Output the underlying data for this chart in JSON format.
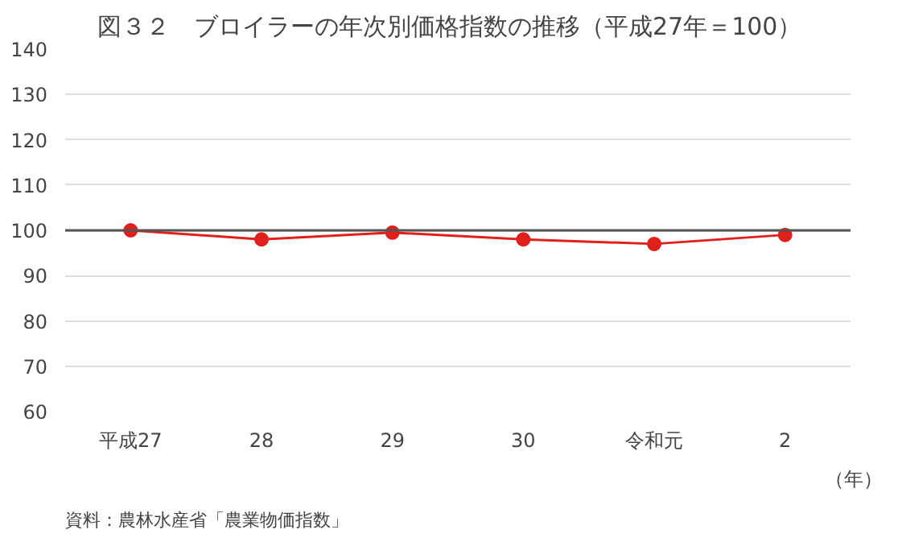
{
  "chart_data": {
    "type": "line",
    "title": "図３２　ブロイラーの年次別価格指数の推移（平成27年＝100）",
    "categories": [
      "平成27",
      "28",
      "29",
      "30",
      "令和元",
      "2"
    ],
    "series": [
      {
        "color": "#e0201b",
        "values": [
          100,
          98,
          99.5,
          98,
          97,
          99
        ]
      }
    ],
    "xlabel": "（年）",
    "ylim": [
      60,
      140
    ],
    "yticks": [
      60,
      70,
      80,
      90,
      100,
      110,
      120,
      130,
      140
    ],
    "grid": "y",
    "marker": "circle",
    "line_style": "solid",
    "ref_lines": [
      {
        "axis": "y",
        "value": 100,
        "label": null,
        "color": "#555555"
      }
    ],
    "annotations": [
      "資料：農林水産省「農業物価指数」"
    ]
  }
}
